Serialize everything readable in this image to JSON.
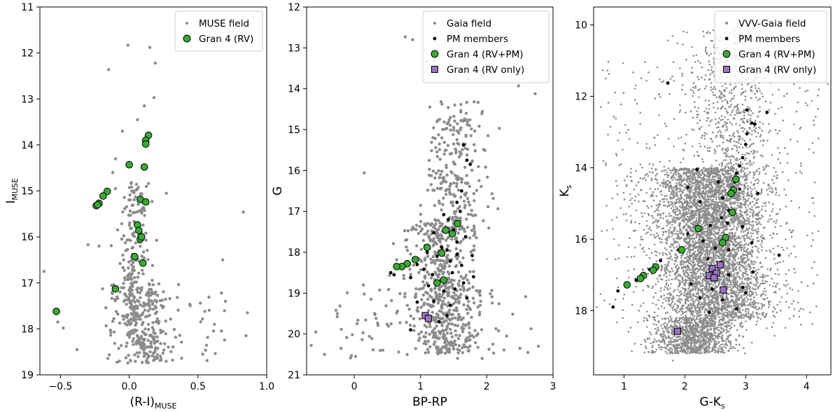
{
  "chart_data": [
    {
      "type": "scatter",
      "xlabel": "(R-I)",
      "xlabel_sub": "MUSE",
      "ylabel": "I",
      "ylabel_sub": "MUSE",
      "xlim": [
        -0.65,
        1.0
      ],
      "ylim": [
        19,
        11
      ],
      "xticks": [
        -0.5,
        0.0,
        0.5,
        1.0
      ],
      "xtick_labels": [
        "−0.5",
        "0.0",
        "0.5",
        "1.0"
      ],
      "yticks": [
        11,
        12,
        13,
        14,
        15,
        16,
        17,
        18,
        19
      ],
      "ytick_labels": [
        "11",
        "12",
        "13",
        "14",
        "15",
        "16",
        "17",
        "18",
        "19"
      ],
      "legend_position": "top-right",
      "series": [
        {
          "name": "MUSE field",
          "color": "#8c8c8c",
          "marker": "dot",
          "n_points": 520,
          "points": [
            [
              -0.01,
              11.83
            ],
            [
              0.15,
              11.88
            ],
            [
              0.19,
              12.22
            ],
            [
              -0.15,
              12.36
            ],
            [
              0.18,
              12.97
            ],
            [
              0.11,
              13.15
            ],
            [
              0.06,
              13.45
            ],
            [
              -0.05,
              13.7
            ],
            [
              -0.1,
              14.3
            ],
            [
              -0.12,
              14.6
            ],
            [
              -0.1,
              14.95
            ],
            [
              0.27,
              15.05
            ],
            [
              -0.3,
              16.17
            ],
            [
              -0.22,
              16.2
            ],
            [
              -0.62,
              16.75
            ],
            [
              -0.52,
              17.85
            ],
            [
              -0.48,
              17.98
            ],
            [
              -0.38,
              18.45
            ],
            [
              0.68,
              16.5
            ],
            [
              0.7,
              17.4
            ],
            [
              0.83,
              15.46
            ],
            [
              0.86,
              17.65
            ],
            [
              0.85,
              18.15
            ],
            [
              0.62,
              17.9
            ],
            [
              0.55,
              17.62
            ]
          ]
        },
        {
          "name": "Gran 4 (RV)",
          "color": "#3aaa35",
          "marker": "circle",
          "points": [
            [
              0.14,
              13.79
            ],
            [
              0.12,
              13.9
            ],
            [
              0.12,
              13.98
            ],
            [
              0.0,
              14.43
            ],
            [
              0.11,
              14.48
            ],
            [
              -0.16,
              15.01
            ],
            [
              -0.19,
              15.11
            ],
            [
              -0.22,
              15.27
            ],
            [
              -0.24,
              15.32
            ],
            [
              -0.23,
              15.3
            ],
            [
              0.08,
              15.18
            ],
            [
              0.12,
              15.24
            ],
            [
              0.06,
              15.74
            ],
            [
              0.07,
              15.86
            ],
            [
              0.08,
              16.05
            ],
            [
              0.09,
              16.0
            ],
            [
              0.04,
              16.43
            ],
            [
              0.1,
              16.57
            ],
            [
              -0.1,
              17.13
            ],
            [
              -0.53,
              17.62
            ]
          ]
        }
      ]
    },
    {
      "type": "scatter",
      "xlabel": "BP-RP",
      "ylabel": "G",
      "xlim": [
        -0.72,
        3.0
      ],
      "ylim": [
        21,
        12
      ],
      "xticks": [
        0,
        1,
        2,
        3
      ],
      "xtick_labels": [
        "0",
        "1",
        "2",
        "3"
      ],
      "yticks": [
        12,
        13,
        14,
        15,
        16,
        17,
        18,
        19,
        20,
        21
      ],
      "ytick_labels": [
        "12",
        "13",
        "14",
        "15",
        "16",
        "17",
        "18",
        "19",
        "20",
        "21"
      ],
      "legend_position": "top-right",
      "series": [
        {
          "name": "Gaia field",
          "color": "#8c8c8c",
          "marker": "dot",
          "n_points": 900,
          "points": [
            [
              0.77,
              12.73
            ],
            [
              0.88,
              12.8
            ],
            [
              1.1,
              13.34
            ],
            [
              1.2,
              13.3
            ],
            [
              1.48,
              13.02
            ],
            [
              1.72,
              13.75
            ],
            [
              2.48,
              13.93
            ],
            [
              2.73,
              14.12
            ],
            [
              0.15,
              16.06
            ],
            [
              2.02,
              15.15
            ],
            [
              -0.65,
              20.28
            ],
            [
              -0.45,
              20.5
            ],
            [
              -0.2,
              20.35
            ],
            [
              2.5,
              20.35
            ],
            [
              2.62,
              20.45
            ],
            [
              2.78,
              20.3
            ],
            [
              -0.58,
              19.95
            ],
            [
              0.02,
              20.55
            ],
            [
              2.3,
              20.05
            ]
          ]
        },
        {
          "name": "PM members",
          "color": "#000000",
          "marker": "dot",
          "points": [
            [
              1.65,
              15.38
            ],
            [
              1.7,
              15.75
            ],
            [
              1.75,
              15.85
            ],
            [
              1.62,
              16.5
            ],
            [
              1.55,
              16.78
            ],
            [
              1.6,
              17.0
            ],
            [
              1.35,
              17.08
            ],
            [
              1.42,
              17.2
            ],
            [
              1.5,
              17.45
            ],
            [
              1.2,
              17.52
            ],
            [
              1.32,
              17.88
            ],
            [
              1.4,
              17.95
            ],
            [
              1.1,
              18.0
            ],
            [
              1.55,
              18.05
            ],
            [
              1.25,
              18.1
            ],
            [
              0.95,
              18.3
            ],
            [
              1.05,
              18.42
            ],
            [
              0.72,
              18.4
            ],
            [
              0.55,
              18.5
            ],
            [
              0.6,
              18.55
            ],
            [
              0.85,
              18.62
            ],
            [
              1.18,
              18.55
            ],
            [
              1.48,
              18.5
            ],
            [
              1.12,
              18.82
            ],
            [
              1.35,
              18.95
            ],
            [
              1.52,
              18.9
            ],
            [
              1.65,
              18.75
            ],
            [
              1.8,
              18.6
            ],
            [
              1.2,
              19.2
            ],
            [
              1.45,
              19.3
            ],
            [
              0.95,
              19.22
            ],
            [
              1.7,
              19.12
            ],
            [
              1.4,
              19.55
            ],
            [
              1.28,
              19.7
            ],
            [
              0.85,
              19.9
            ],
            [
              1.55,
              17.75
            ],
            [
              1.68,
              17.62
            ],
            [
              1.45,
              18.22
            ],
            [
              1.62,
              18.32
            ],
            [
              1.78,
              18.08
            ]
          ]
        },
        {
          "name": "Gran 4 (RV+PM)",
          "color": "#3aaa35",
          "marker": "circle",
          "points": [
            [
              1.56,
              17.3
            ],
            [
              1.38,
              17.46
            ],
            [
              1.48,
              17.55
            ],
            [
              1.1,
              17.88
            ],
            [
              1.32,
              18.02
            ],
            [
              0.92,
              18.18
            ],
            [
              0.8,
              18.28
            ],
            [
              0.72,
              18.35
            ],
            [
              0.64,
              18.35
            ],
            [
              1.25,
              18.75
            ],
            [
              1.35,
              18.68
            ]
          ]
        },
        {
          "name": "Gran 4 (RV only)",
          "color": "#9b72c2",
          "marker": "square",
          "points": [
            [
              1.07,
              19.55
            ],
            [
              1.12,
              19.62
            ]
          ]
        }
      ]
    },
    {
      "type": "scatter",
      "xlabel": "G-K",
      "xlabel_sub": "s",
      "ylabel": "K",
      "ylabel_sub": "s",
      "xlim": [
        0.5,
        4.4
      ],
      "ylim": [
        19.8,
        9.5
      ],
      "xticks": [
        1,
        2,
        3,
        4
      ],
      "xtick_labels": [
        "1",
        "2",
        "3",
        "4"
      ],
      "yticks": [
        10,
        12,
        14,
        16,
        18
      ],
      "ytick_labels": [
        "10",
        "12",
        "14",
        "16",
        "18"
      ],
      "legend_position": "top-right",
      "series": [
        {
          "name": "VVV-Gaia field",
          "color": "#8c8c8c",
          "marker": "dot",
          "n_points": 7000,
          "points": [
            [
              0.7,
              11.5
            ],
            [
              0.62,
              12.3
            ],
            [
              1.62,
              11.6
            ],
            [
              4.35,
              11.65
            ],
            [
              0.95,
              13.9
            ],
            [
              0.55,
              17.9
            ],
            [
              1.8,
              19.4
            ]
          ]
        },
        {
          "name": "PM members",
          "color": "#000000",
          "marker": "dot",
          "points": [
            [
              1.72,
              11.63
            ],
            [
              3.02,
              12.38
            ],
            [
              3.35,
              12.45
            ],
            [
              3.1,
              12.75
            ],
            [
              3.15,
              12.78
            ],
            [
              3.02,
              13.05
            ],
            [
              3.0,
              13.35
            ],
            [
              2.95,
              13.72
            ],
            [
              2.9,
              13.95
            ],
            [
              2.85,
              14.15
            ],
            [
              2.82,
              14.4
            ],
            [
              2.9,
              14.6
            ],
            [
              2.2,
              14.05
            ],
            [
              3.2,
              14.72
            ],
            [
              2.25,
              14.95
            ],
            [
              2.55,
              14.4
            ],
            [
              2.05,
              14.55
            ],
            [
              2.62,
              14.85
            ],
            [
              2.72,
              15.2
            ],
            [
              2.6,
              15.4
            ],
            [
              2.42,
              15.62
            ],
            [
              2.7,
              15.55
            ],
            [
              2.95,
              15.65
            ],
            [
              2.05,
              15.85
            ],
            [
              2.3,
              16.05
            ],
            [
              2.5,
              16.25
            ],
            [
              2.72,
              16.3
            ],
            [
              3.1,
              16.1
            ],
            [
              2.38,
              16.55
            ],
            [
              2.6,
              16.65
            ],
            [
              1.9,
              16.3
            ],
            [
              1.6,
              16.6
            ],
            [
              1.42,
              16.85
            ],
            [
              1.2,
              17.15
            ],
            [
              1.05,
              17.3
            ],
            [
              0.9,
              17.45
            ],
            [
              0.82,
              17.9
            ],
            [
              2.45,
              17.4
            ],
            [
              2.72,
              17.0
            ],
            [
              2.95,
              17.35
            ],
            [
              3.12,
              16.92
            ],
            [
              2.25,
              17.65
            ],
            [
              2.62,
              17.7
            ],
            [
              3.55,
              16.45
            ],
            [
              2.1,
              17.25
            ],
            [
              2.85,
              17.95
            ],
            [
              2.4,
              18.05
            ],
            [
              3.0,
              17.5
            ]
          ]
        },
        {
          "name": "Gran 4 (RV+PM)",
          "color": "#3aaa35",
          "marker": "circle",
          "points": [
            [
              2.84,
              14.32
            ],
            [
              2.8,
              14.62
            ],
            [
              2.76,
              14.72
            ],
            [
              2.78,
              15.25
            ],
            [
              2.22,
              15.7
            ],
            [
              2.67,
              15.95
            ],
            [
              2.62,
              16.1
            ],
            [
              1.95,
              16.3
            ],
            [
              1.52,
              16.78
            ],
            [
              1.48,
              16.87
            ],
            [
              1.32,
              17.02
            ],
            [
              1.27,
              17.1
            ],
            [
              1.05,
              17.28
            ]
          ]
        },
        {
          "name": "Gran 4 (RV only)",
          "color": "#9b72c2",
          "marker": "square",
          "points": [
            [
              2.58,
              16.72
            ],
            [
              2.45,
              16.82
            ],
            [
              2.52,
              16.95
            ],
            [
              2.4,
              17.02
            ],
            [
              2.48,
              17.08
            ],
            [
              2.63,
              17.42
            ],
            [
              1.88,
              18.58
            ]
          ]
        }
      ]
    }
  ]
}
